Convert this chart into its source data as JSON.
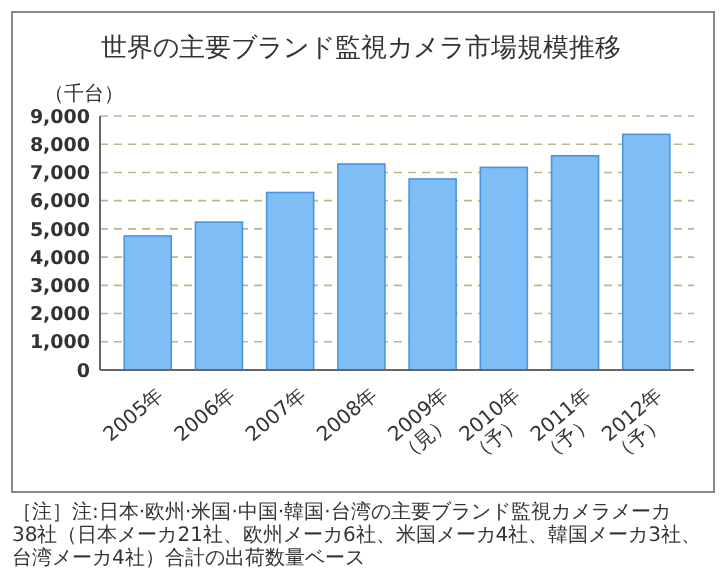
{
  "chart_data": {
    "type": "bar",
    "title": "世界の主要ブランド監視カメラ市場規模推移",
    "ylabel": "（千台）",
    "categories": [
      "2005年",
      "2006年",
      "2007年",
      "2008年",
      "2009年\n（見）",
      "2010年\n（予）",
      "2011年\n（予）",
      "2012年\n（予）"
    ],
    "values": [
      4750,
      5240,
      6290,
      7300,
      6770,
      7180,
      7590,
      8350
    ],
    "color": "#7fbef5",
    "ylim": [
      0,
      9000
    ],
    "yticks": [
      {
        "value": 0,
        "label": "0"
      },
      {
        "value": 1000,
        "label": "1,000"
      },
      {
        "value": 2000,
        "label": "2,000"
      },
      {
        "value": 3000,
        "label": "3,000"
      },
      {
        "value": 4000,
        "label": "4,000"
      },
      {
        "value": 5000,
        "label": "5,000"
      },
      {
        "value": 6000,
        "label": "6,000"
      },
      {
        "value": 7000,
        "label": "7,000"
      },
      {
        "value": 8000,
        "label": "8,000"
      },
      {
        "value": 9000,
        "label": "9,000"
      }
    ],
    "grid": "y",
    "annotations": [
      "［注］注:日本·欧州·米国·中国·韓国·台湾の主要ブランド監視カメラメーカ38社（日本メーカ21社、欧州メーカ6社、米国メーカ4社、韓国メーカ3社、台湾メーカ4社）合計の出荷数量ベース"
    ]
  }
}
